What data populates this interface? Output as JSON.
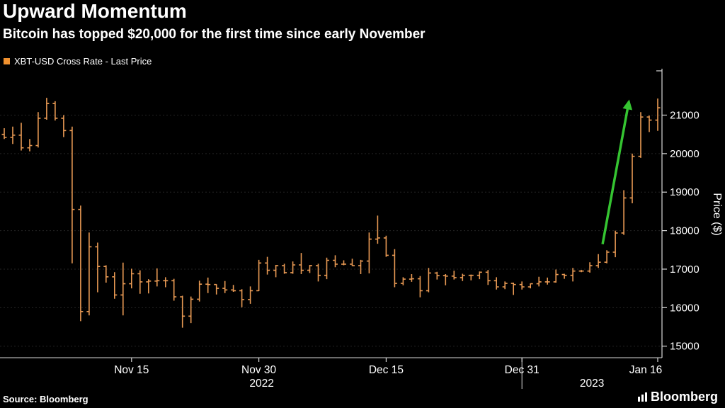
{
  "header": {
    "title": "Upward Momentum",
    "subtitle": "Bitcoin has topped $20,000 for the first time since early November"
  },
  "legend": {
    "label": "XBT-USD Cross Rate - Last Price",
    "swatch_color": "#f0912f"
  },
  "footer": {
    "source_label": "Source: Bloomberg",
    "brand": "Bloomberg"
  },
  "chart_data": {
    "type": "ohlc-bar",
    "title": "Upward Momentum",
    "subtitle": "Bitcoin has topped $20,000 for the first time since early November",
    "series_name": "XBT-USD Cross Rate - Last Price",
    "ylabel": "Price ($)",
    "y_ticks": [
      15000,
      16000,
      17000,
      18000,
      19000,
      20000,
      21000
    ],
    "y_range": [
      14700,
      22150
    ],
    "x_tick_labels": [
      "Nov 15",
      "Nov 30",
      "Dec 15",
      "Dec 31",
      "Jan 16"
    ],
    "x_tick_indices": [
      15,
      30,
      45,
      61,
      77
    ],
    "year_labels": [
      "2022",
      "2023"
    ],
    "year_divider_index": 61,
    "bar_color": "#e99a54",
    "axis_color": "#d9d9d9",
    "grid_color": "#242424",
    "arrow_color": "#35c431",
    "arrow": {
      "from_index": 70.5,
      "from_price": 17650,
      "to_index": 73.6,
      "to_price": 21350
    },
    "bars": [
      [
        20500,
        20660,
        20380,
        20420
      ],
      [
        20420,
        20700,
        20250,
        20480
      ],
      [
        20480,
        20800,
        20080,
        20150
      ],
      [
        20150,
        20380,
        20060,
        20210
      ],
      [
        20210,
        21080,
        20160,
        20920
      ],
      [
        20920,
        21450,
        20880,
        21300
      ],
      [
        21300,
        21360,
        20860,
        20920
      ],
      [
        20920,
        21000,
        20430,
        20600
      ],
      [
        20600,
        20700,
        17150,
        18550
      ],
      [
        18550,
        18650,
        15650,
        15900
      ],
      [
        15900,
        17950,
        15800,
        17580
      ],
      [
        17580,
        17690,
        16400,
        17070
      ],
      [
        17070,
        17100,
        16650,
        16800
      ],
      [
        16800,
        16920,
        16230,
        16330
      ],
      [
        16330,
        17170,
        15800,
        16620
      ],
      [
        16620,
        17010,
        16500,
        16880
      ],
      [
        16880,
        16970,
        16360,
        16670
      ],
      [
        16670,
        16740,
        16370,
        16690
      ],
      [
        16690,
        17020,
        16550,
        16700
      ],
      [
        16700,
        16790,
        16530,
        16700
      ],
      [
        16700,
        16750,
        16180,
        16280
      ],
      [
        16280,
        16310,
        15480,
        15780
      ],
      [
        15780,
        16290,
        15600,
        16220
      ],
      [
        16220,
        16700,
        16160,
        16610
      ],
      [
        16610,
        16780,
        16380,
        16600
      ],
      [
        16600,
        16610,
        16340,
        16500
      ],
      [
        16500,
        16690,
        16380,
        16460
      ],
      [
        16460,
        16590,
        16410,
        16440
      ],
      [
        16440,
        16480,
        16010,
        16210
      ],
      [
        16210,
        16550,
        16100,
        16440
      ],
      [
        16440,
        17240,
        16430,
        17160
      ],
      [
        17160,
        17320,
        16860,
        16970
      ],
      [
        16970,
        17110,
        16790,
        17090
      ],
      [
        17090,
        17140,
        16880,
        16910
      ],
      [
        16910,
        17200,
        16880,
        17110
      ],
      [
        17110,
        17420,
        16870,
        16970
      ],
      [
        16970,
        17110,
        16900,
        17090
      ],
      [
        17090,
        17140,
        16680,
        16840
      ],
      [
        16840,
        17300,
        16740,
        17230
      ],
      [
        17230,
        17360,
        17050,
        17130
      ],
      [
        17130,
        17230,
        17100,
        17130
      ],
      [
        17130,
        17270,
        17080,
        17090
      ],
      [
        17090,
        17240,
        16870,
        17210
      ],
      [
        17210,
        17950,
        16890,
        17780
      ],
      [
        17780,
        18390,
        17660,
        17810
      ],
      [
        17810,
        17870,
        17320,
        17360
      ],
      [
        17360,
        17520,
        16530,
        16630
      ],
      [
        16630,
        16790,
        16580,
        16740
      ],
      [
        16740,
        16870,
        16670,
        16750
      ],
      [
        16750,
        16820,
        16270,
        16440
      ],
      [
        16440,
        17030,
        16400,
        16900
      ],
      [
        16900,
        16930,
        16730,
        16830
      ],
      [
        16830,
        16870,
        16580,
        16820
      ],
      [
        16820,
        16960,
        16730,
        16780
      ],
      [
        16780,
        16880,
        16690,
        16840
      ],
      [
        16840,
        16860,
        16710,
        16840
      ],
      [
        16840,
        16940,
        16740,
        16920
      ],
      [
        16920,
        16980,
        16590,
        16700
      ],
      [
        16700,
        16790,
        16470,
        16540
      ],
      [
        16540,
        16680,
        16480,
        16630
      ],
      [
        16630,
        16650,
        16330,
        16600
      ],
      [
        16600,
        16680,
        16470,
        16540
      ],
      [
        16540,
        16630,
        16500,
        16620
      ],
      [
        16620,
        16800,
        16550,
        16670
      ],
      [
        16670,
        16780,
        16600,
        16670
      ],
      [
        16670,
        16990,
        16650,
        16860
      ],
      [
        16860,
        16880,
        16750,
        16840
      ],
      [
        16840,
        17030,
        16680,
        16950
      ],
      [
        16950,
        16980,
        16920,
        16950
      ],
      [
        16950,
        17180,
        16910,
        17090
      ],
      [
        17090,
        17390,
        17030,
        17180
      ],
      [
        17180,
        17490,
        17150,
        17440
      ],
      [
        17440,
        18000,
        17310,
        17940
      ],
      [
        17940,
        19050,
        17890,
        18850
      ],
      [
        18850,
        20000,
        18710,
        19930
      ],
      [
        19930,
        21080,
        19890,
        20950
      ],
      [
        20950,
        20990,
        20560,
        20870
      ],
      [
        20870,
        21430,
        20590,
        21190
      ]
    ]
  }
}
